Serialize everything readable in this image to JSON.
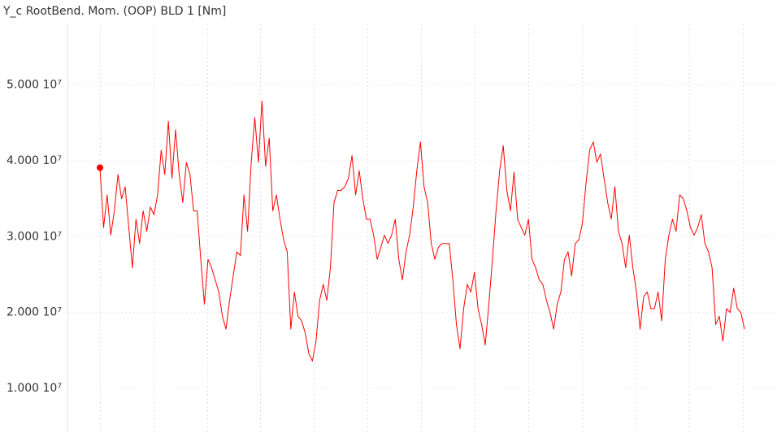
{
  "chart_data": {
    "type": "line",
    "title": "Y_c RootBend. Mom. (OOP) BLD 1 [Nm]",
    "ylim": [
      4100000,
      58000000
    ],
    "yticks": [
      {
        "value": 10000000,
        "label": "1.000 10⁷"
      },
      {
        "value": 20000000,
        "label": "2.000 10⁷"
      },
      {
        "value": 30000000,
        "label": "3.000 10⁷"
      },
      {
        "value": 40000000,
        "label": "4.000 10⁷"
      },
      {
        "value": 50000000,
        "label": "5.000 10⁷"
      }
    ],
    "grid": true,
    "marker_first": true,
    "series": [
      {
        "color": "#ff0000",
        "values": [
          39100000.0,
          31200000.0,
          35500000.0,
          30200000.0,
          33400000.0,
          38200000.0,
          35000000.0,
          36600000.0,
          31200000.0,
          25900000.0,
          32300000.0,
          29100000.0,
          33400000.0,
          30700000.0,
          33900000.0,
          32900000.0,
          35500000.0,
          41400000.0,
          38200000.0,
          45200000.0,
          37700000.0,
          44100000.0,
          38200000.0,
          34500000.0,
          39800000.0,
          38200000.0,
          33400000.0,
          33400000.0,
          27000000.0,
          21100000.0,
          27000000.0,
          25900000.0,
          24300000.0,
          22700000.0,
          19500000.0,
          17800000.0,
          21600000.0,
          24800000.0,
          28000000.0,
          27500000.0,
          35500000.0,
          30700000.0,
          39800000.0,
          45700000.0,
          39800000.0,
          47900000.0,
          39300000.0,
          43000000.0,
          33400000.0,
          35500000.0,
          32300000.0,
          29600000.0,
          28000000.0,
          17800000.0,
          22700000.0,
          19500000.0,
          18900000.0,
          17300000.0,
          14600000.0,
          13600000.0,
          16200000.0,
          21600000.0,
          23700000.0,
          21600000.0,
          25900000.0,
          34500000.0,
          36100000.0,
          36100000.0,
          36600000.0,
          37700000.0,
          40700000.0,
          35500000.0,
          38700000.0,
          35000000.0,
          32300000.0,
          32300000.0,
          30200000.0,
          27000000.0,
          28600000.0,
          30200000.0,
          29100000.0,
          30200000.0,
          32300000.0,
          27000000.0,
          24300000.0,
          28000000.0,
          30200000.0,
          33900000.0,
          38700000.0,
          42500000.0,
          36600000.0,
          34500000.0,
          29100000.0,
          27000000.0,
          28600000.0,
          29100000.0,
          29100000.0,
          29100000.0,
          24300000.0,
          18400000.0,
          15200000.0,
          20500000.0,
          23700000.0,
          22700000.0,
          25300000.0,
          20500000.0,
          18400000.0,
          15700000.0,
          21100000.0,
          27000000.0,
          33400000.0,
          38700000.0,
          42000000.0,
          36100000.0,
          33400000.0,
          38500000.0,
          32300000.0,
          31200000.0,
          30200000.0,
          32300000.0,
          27000000.0,
          25900000.0,
          24300000.0,
          23700000.0,
          21600000.0,
          20000000.0,
          17800000.0,
          21100000.0,
          22700000.0,
          27000000.0,
          28000000.0,
          24800000.0,
          29100000.0,
          29600000.0,
          31800000.0,
          37100000.0,
          41400000.0,
          42500000.0,
          39800000.0,
          40900000.0,
          37700000.0,
          34500000.0,
          32300000.0,
          36600000.0,
          30700000.0,
          29100000.0,
          25900000.0,
          30200000.0,
          25900000.0,
          22700000.0,
          17800000.0,
          22100000.0,
          22700000.0,
          20500000.0,
          20500000.0,
          22700000.0,
          18900000.0,
          27000000.0,
          30200000.0,
          32300000.0,
          30700000.0,
          35500000.0,
          35000000.0,
          33400000.0,
          31200000.0,
          30200000.0,
          31200000.0,
          32900000.0,
          29100000.0,
          28000000.0,
          25900000.0,
          18400000.0,
          19500000.0,
          16200000.0,
          20500000.0,
          20000000.0,
          23200000.0,
          20500000.0,
          20000000.0,
          17800000.0
        ]
      }
    ]
  }
}
